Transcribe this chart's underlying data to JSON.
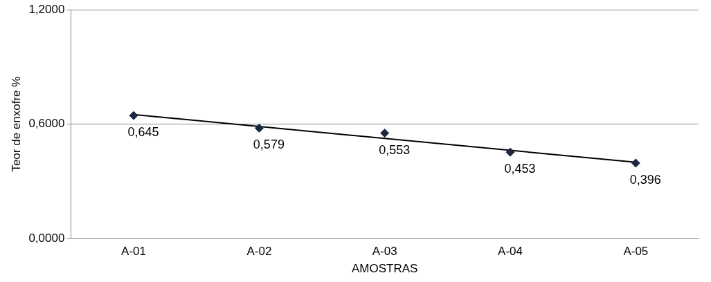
{
  "chart_data": {
    "type": "scatter",
    "xlabel": "AMOSTRAS",
    "ylabel": "Teor de enxofre %",
    "categories": [
      "A-01",
      "A-02",
      "A-03",
      "A-04",
      "A-05"
    ],
    "series": [
      {
        "color": "#1c2740",
        "values": [
          0.645,
          0.579,
          0.553,
          0.453,
          0.396
        ],
        "value_labels": [
          "0,645",
          "0,579",
          "0,553",
          "0,453",
          "0,396"
        ],
        "marker": "diamond"
      },
      {
        "type": "line",
        "color": "#000000",
        "x": [
          "A-01",
          "A-05"
        ],
        "values": [
          0.65,
          0.4
        ],
        "marker": "none",
        "line_style": "solid"
      }
    ],
    "ylim": [
      0,
      1.2
    ],
    "yticks": [
      {
        "value": 0,
        "label": "0,0000"
      },
      {
        "value": 0.6,
        "label": "0,6000"
      },
      {
        "value": 1.2,
        "label": "1,2000"
      }
    ],
    "grid": "y",
    "legend": false
  }
}
